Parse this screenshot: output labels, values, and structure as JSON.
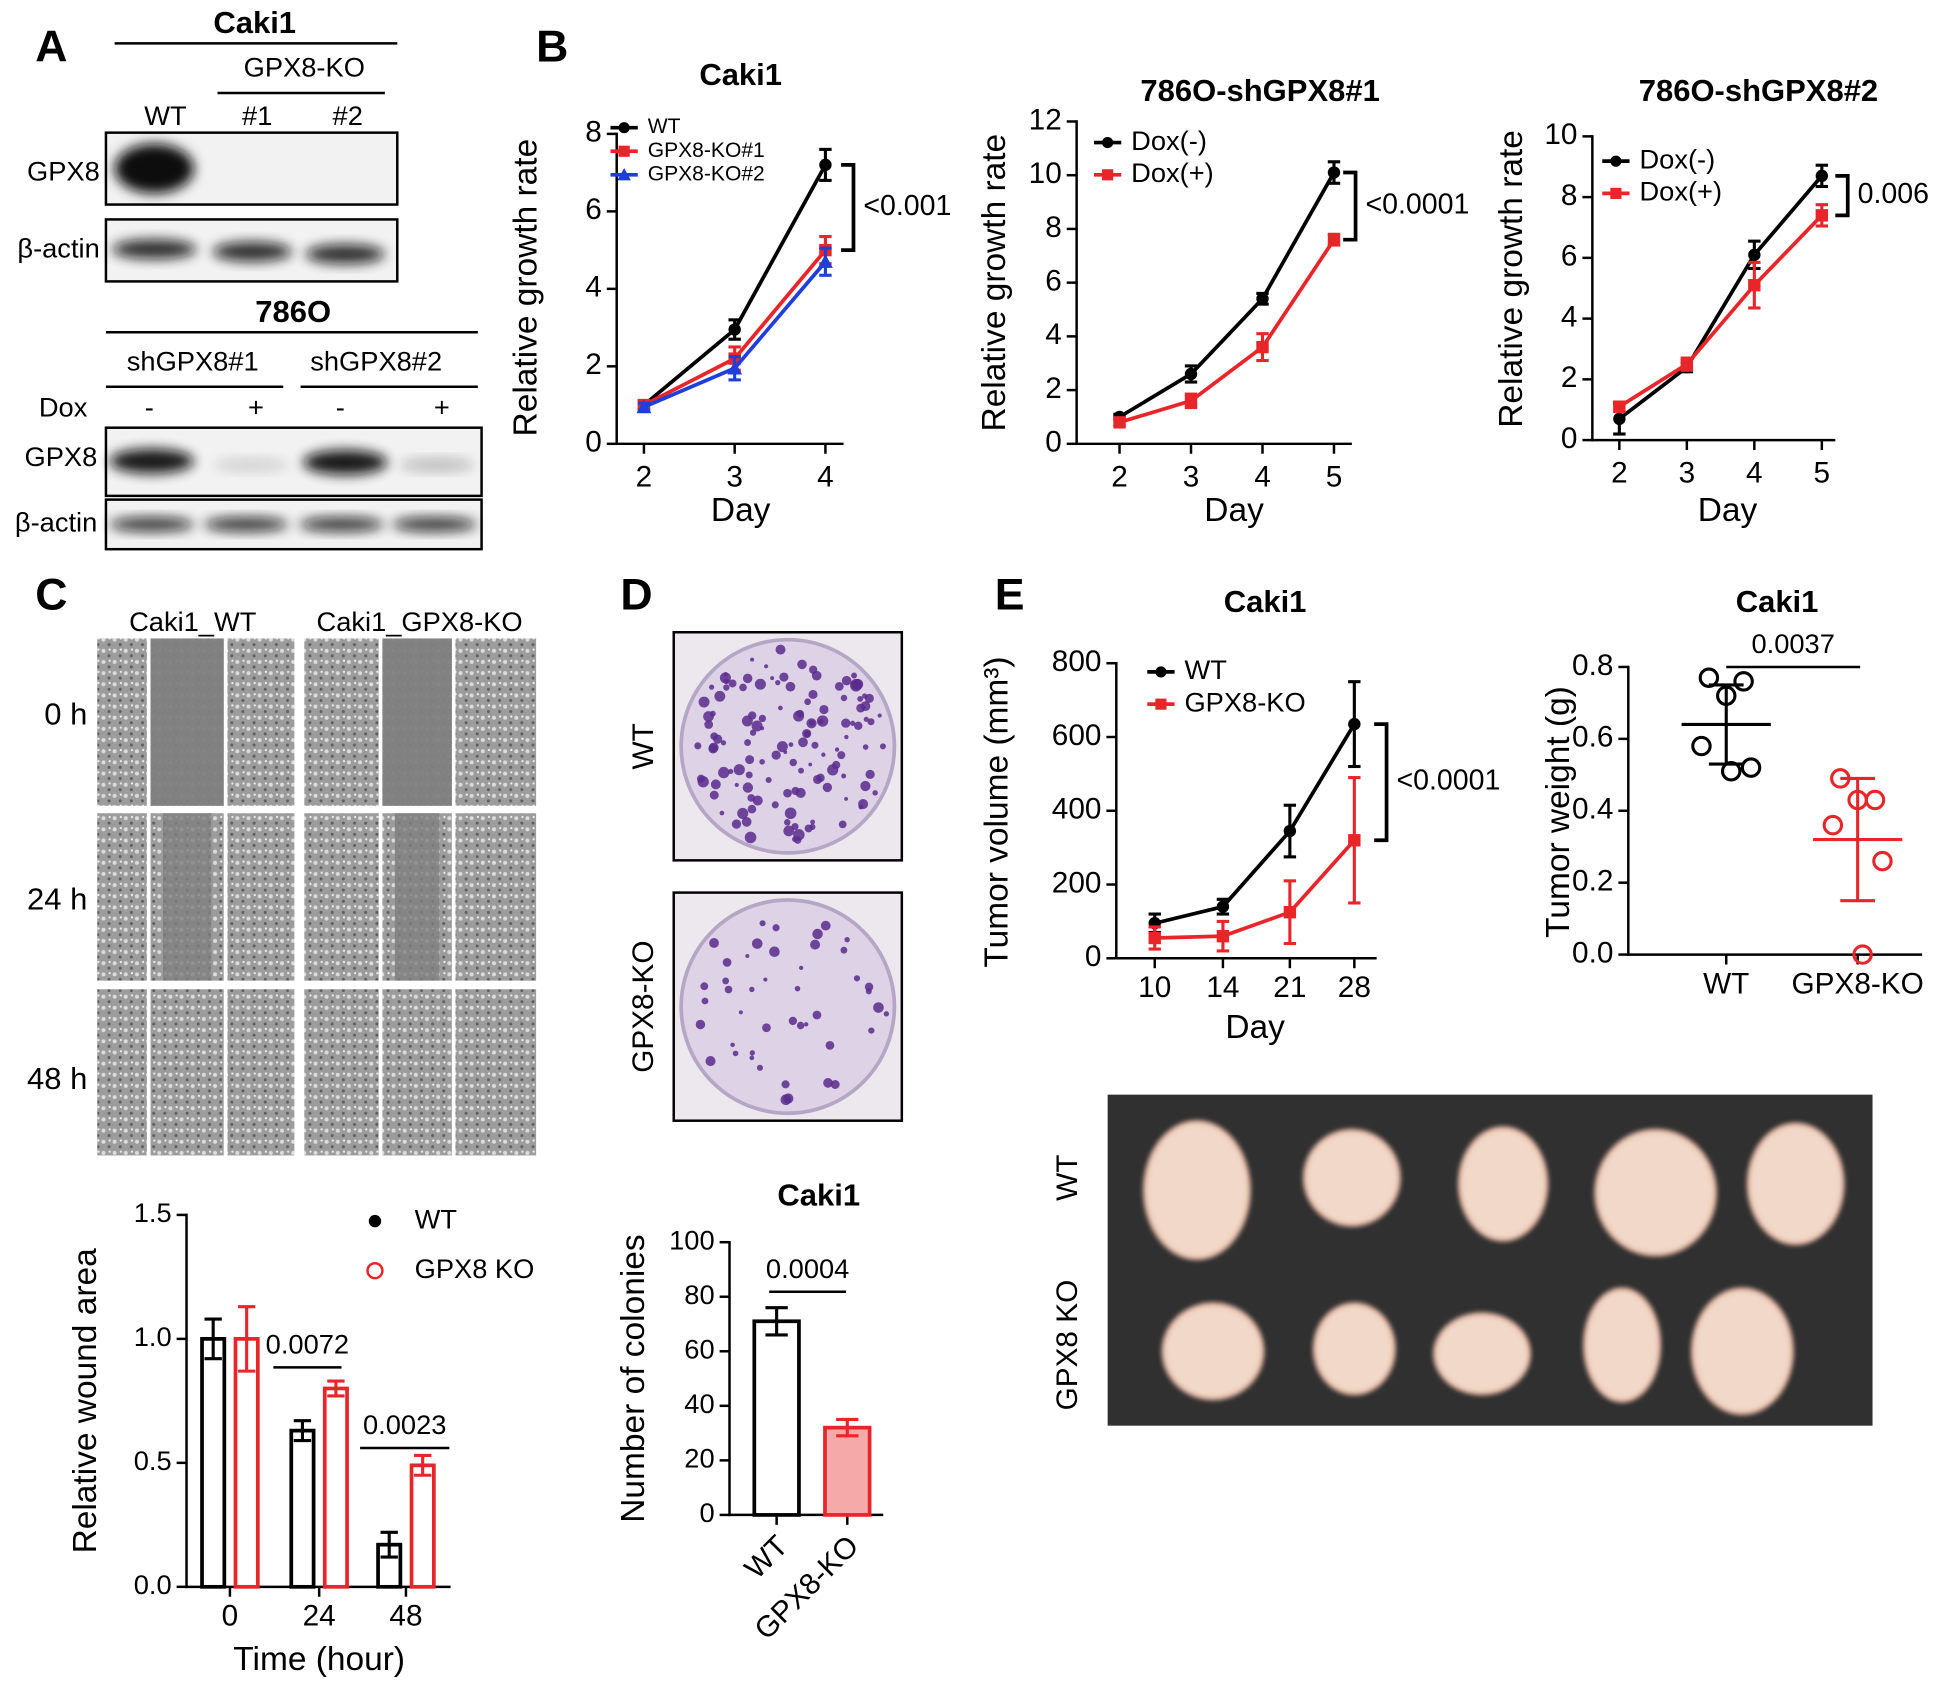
{
  "panel_labels": [
    "A",
    "B",
    "C",
    "D",
    "E"
  ],
  "blot_caki1": {
    "title": "Caki1",
    "group": "GPX8-KO",
    "lanes": [
      "WT",
      "#1",
      "#2"
    ],
    "rows": [
      "GPX8",
      "β-actin"
    ]
  },
  "blot_786o": {
    "title": "786O",
    "groups": [
      "shGPX8#1",
      "shGPX8#2"
    ],
    "dox_label": "Dox",
    "dox": [
      "-",
      "+",
      "-",
      "+"
    ],
    "rows": [
      "GPX8",
      "β-actin"
    ]
  },
  "wound_images": {
    "columns": [
      "Caki1_WT",
      "Caki1_GPX8-KO"
    ],
    "rows": [
      "0 h",
      "24 h",
      "48 h"
    ]
  },
  "colony_images": {
    "rows": [
      "WT",
      "GPX8-KO"
    ]
  },
  "tumor_images": {
    "rows": [
      "WT",
      "GPX8 KO"
    ]
  },
  "chart_data": [
    {
      "type": "line",
      "title": "Caki1",
      "xlabel": "Day",
      "ylabel": "Relative growth rate",
      "x": [
        2,
        3,
        4
      ],
      "xlim": [
        1.7,
        4.2
      ],
      "xticks": [
        2,
        3,
        4
      ],
      "ylim": [
        0,
        8
      ],
      "yticks": [
        0,
        2,
        4,
        6,
        8
      ],
      "series": [
        {
          "name": "WT",
          "color": "#000000",
          "marker": "circle",
          "values": [
            1.0,
            2.95,
            7.2
          ],
          "errors": [
            0.1,
            0.25,
            0.4
          ]
        },
        {
          "name": "GPX8-KO#1",
          "color": "#e8262a",
          "marker": "square",
          "values": [
            1.0,
            2.2,
            5.0
          ],
          "errors": [
            0.1,
            0.3,
            0.35
          ]
        },
        {
          "name": "GPX8-KO#2",
          "color": "#1f3fdb",
          "marker": "triangle",
          "values": [
            0.95,
            1.95,
            4.7
          ],
          "errors": [
            0.1,
            0.3,
            0.35
          ]
        }
      ],
      "annotations": [
        "<0.001"
      ]
    },
    {
      "type": "line",
      "title": "786O-shGPX8#1",
      "xlabel": "Day",
      "ylabel": "Relative growth rate",
      "x": [
        2,
        3,
        4,
        5
      ],
      "xlim": [
        1.4,
        5.25
      ],
      "xticks": [
        2,
        3,
        4,
        5
      ],
      "ylim": [
        0,
        12
      ],
      "yticks": [
        0,
        2,
        4,
        6,
        8,
        10,
        12
      ],
      "series": [
        {
          "name": "Dox(-)",
          "color": "#000000",
          "marker": "circle",
          "values": [
            1.0,
            2.6,
            5.4,
            10.1
          ],
          "errors": [
            0.1,
            0.3,
            0.2,
            0.4
          ]
        },
        {
          "name": "Dox(+)",
          "color": "#e8262a",
          "marker": "square",
          "values": [
            0.8,
            1.6,
            3.6,
            7.6
          ],
          "errors": [
            0.1,
            0.25,
            0.5,
            0.2
          ]
        }
      ],
      "annotations": [
        "<0.0001"
      ]
    },
    {
      "type": "line",
      "title": "786O-shGPX8#2",
      "xlabel": "Day",
      "ylabel": "Relative growth rate",
      "x": [
        2,
        3,
        4,
        5
      ],
      "xlim": [
        1.6,
        5.2
      ],
      "xticks": [
        2,
        3,
        4,
        5
      ],
      "ylim": [
        0,
        10
      ],
      "yticks": [
        0,
        2,
        4,
        6,
        8,
        10
      ],
      "series": [
        {
          "name": "Dox(-)",
          "color": "#000000",
          "marker": "circle",
          "values": [
            0.7,
            2.4,
            6.1,
            8.7
          ],
          "errors": [
            0.5,
            0.15,
            0.45,
            0.35
          ]
        },
        {
          "name": "Dox(+)",
          "color": "#e8262a",
          "marker": "square",
          "values": [
            1.1,
            2.5,
            5.1,
            7.4
          ],
          "errors": [
            0.15,
            0.2,
            0.75,
            0.35
          ]
        }
      ],
      "annotations": [
        "0.006"
      ]
    },
    {
      "type": "bar",
      "xlabel": "Time (hour)",
      "ylabel": "Relative wound area",
      "categories": [
        "0",
        "24",
        "48"
      ],
      "ylim": [
        0,
        1.5
      ],
      "yticks": [
        {
          "value": 0,
          "label": "0.0"
        },
        0.5,
        {
          "value": 1,
          "label": "1.0"
        },
        1.5
      ],
      "series": [
        {
          "name": "WT",
          "color": "#000000",
          "fill": "#ffffff",
          "marker": "dot",
          "values": [
            1.0,
            0.63,
            0.17
          ],
          "errors": [
            0.08,
            0.04,
            0.05
          ]
        },
        {
          "name": "GPX8 KO",
          "color": "#e8262a",
          "fill": "#ffffff",
          "marker": "open-circle",
          "values": [
            1.0,
            0.8,
            0.49
          ],
          "errors": [
            0.13,
            0.03,
            0.04
          ]
        }
      ],
      "annotations": [
        "0.0072",
        "0.0023"
      ]
    },
    {
      "type": "bar",
      "title": "Caki1",
      "ylabel": "Number of colonies",
      "categories": [
        "WT",
        "GPX8-KO"
      ],
      "values": [
        71,
        32
      ],
      "errors": [
        5,
        3
      ],
      "colors": [
        "#000000",
        "#e8262a"
      ],
      "fills": [
        "#ffffff",
        "#f6a9a9"
      ],
      "ylim": [
        0,
        100
      ],
      "yticks": [
        0,
        20,
        40,
        60,
        80,
        100
      ],
      "annotations": [
        "0.0004"
      ]
    },
    {
      "type": "line",
      "title": "Caki1",
      "xlabel": "Day",
      "ylabel": "Tumor volume (mm³)",
      "categories": [
        "10",
        "14",
        "21",
        "28"
      ],
      "ylim": [
        0,
        800
      ],
      "yticks": [
        0,
        200,
        400,
        600,
        800
      ],
      "series": [
        {
          "name": "WT",
          "color": "#000000",
          "marker": "circle",
          "values": [
            95,
            140,
            345,
            635
          ],
          "errors": [
            25,
            20,
            70,
            115
          ]
        },
        {
          "name": "GPX8-KO",
          "color": "#e8262a",
          "marker": "square",
          "values": [
            55,
            60,
            125,
            320
          ],
          "errors": [
            30,
            40,
            85,
            170
          ]
        }
      ],
      "annotations": [
        "<0.0001"
      ]
    },
    {
      "type": "dot",
      "title": "Caki1",
      "ylabel": "Tumor weight (g)",
      "categories": [
        "WT",
        "GPX8-KO"
      ],
      "colors": [
        "#000000",
        "#e8262a"
      ],
      "points": [
        [
          0.77,
          0.76,
          0.72,
          0.58,
          0.52,
          0.51
        ],
        [
          0.49,
          0.43,
          0.43,
          0.36,
          0.26,
          0.0
        ]
      ],
      "means": [
        0.64,
        0.32
      ],
      "sds": [
        0.11,
        0.17
      ],
      "ylim": [
        0,
        0.8
      ],
      "yticks": [
        {
          "value": 0,
          "label": "0.0"
        },
        0.2,
        0.4,
        0.6,
        0.8
      ],
      "annotations": [
        "0.0037"
      ]
    }
  ]
}
